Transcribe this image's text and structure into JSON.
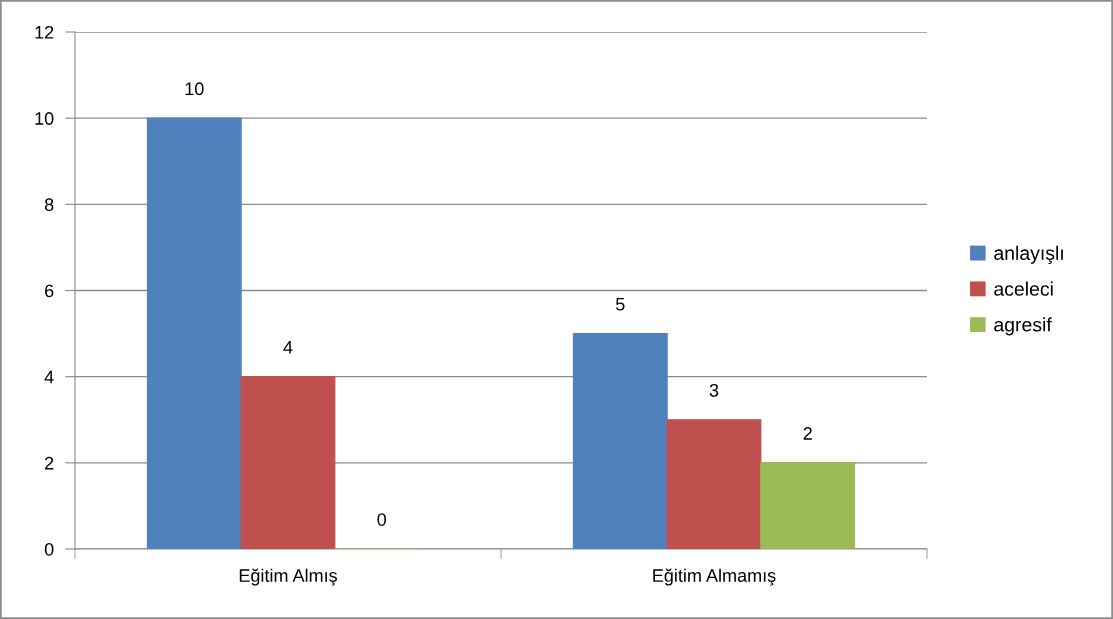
{
  "chart_data": {
    "type": "bar",
    "categories": [
      "Eğitim Almış",
      "Eğitim Almamış"
    ],
    "series": [
      {
        "name": "anlayışlı",
        "color": "#4f81bd",
        "values": [
          10,
          5
        ]
      },
      {
        "name": "aceleci",
        "color": "#c0504d",
        "values": [
          4,
          3
        ]
      },
      {
        "name": "agresif",
        "color": "#9bbb59",
        "values": [
          0,
          2
        ]
      }
    ],
    "ylim": [
      0,
      12
    ],
    "yticks": [
      0,
      2,
      4,
      6,
      8,
      10,
      12
    ],
    "grid": "y",
    "legend": "right",
    "data_labels": true
  }
}
